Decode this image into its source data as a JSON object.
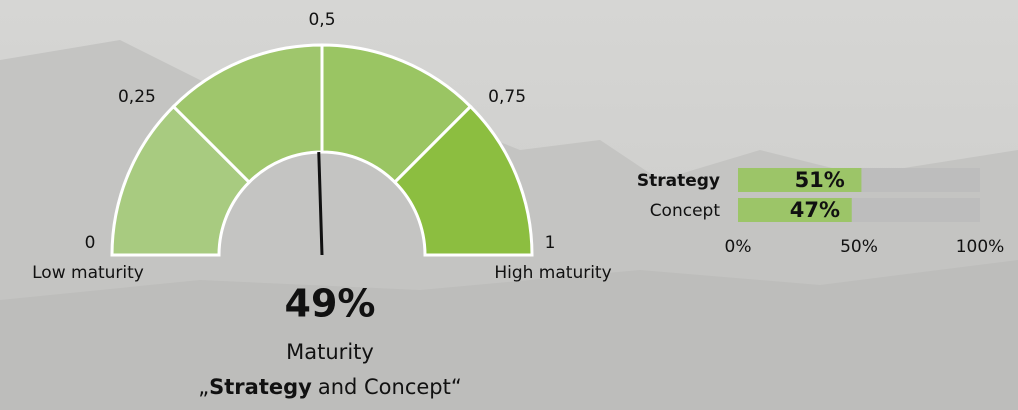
{
  "chart_data": [
    {
      "type": "gauge",
      "value": 0.49,
      "value_label": "49%",
      "lim": [
        0,
        1
      ],
      "ticks": [
        0,
        {
          "value": 0.25,
          "label": "0,25"
        },
        {
          "value": 0.5,
          "label": "0,5"
        },
        {
          "value": 0.75,
          "label": "0,75"
        },
        1
      ],
      "band_colors": [
        "#a8cb80",
        "#9fc66c",
        "#9ac563",
        "#8cbe40"
      ],
      "needle_color": "#111111",
      "min_label": "Low maturity",
      "max_label": "High maturity",
      "title": "Maturity",
      "subtitle_parts": [
        "„",
        "Strategy",
        "and Concept“"
      ]
    },
    {
      "type": "bar",
      "orientation": "horizontal",
      "categories": [
        "Strategy",
        "Concept"
      ],
      "values": [
        51,
        47
      ],
      "value_labels": [
        "51%",
        "47%"
      ],
      "color": "#9cc568",
      "track_color": "#bdbdbd",
      "xlim": [
        0,
        100
      ],
      "xticks": [
        {
          "value": 0,
          "label": "0%"
        },
        {
          "value": 50,
          "label": "50%"
        },
        {
          "value": 100,
          "label": "100%"
        }
      ]
    }
  ]
}
